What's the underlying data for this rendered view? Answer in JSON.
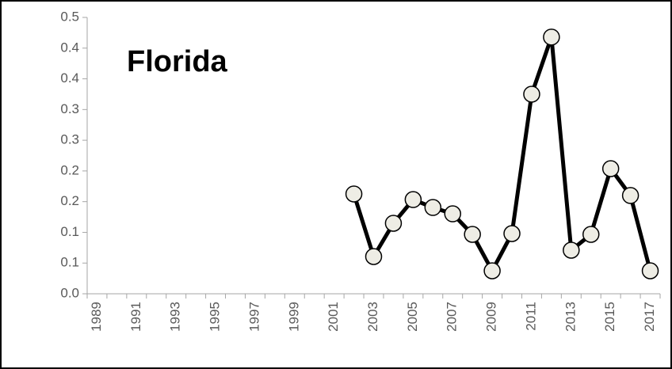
{
  "chart_data": {
    "type": "line",
    "title": "Florida",
    "categories": [
      "1989",
      null,
      "1991",
      null,
      "1993",
      null,
      "1995",
      null,
      "1997",
      null,
      "1999",
      null,
      "2001",
      null,
      "2003",
      null,
      "2005",
      null,
      "2007",
      null,
      "2009",
      null,
      "2011",
      null,
      "2013",
      null,
      "2015",
      null,
      "2017"
    ],
    "series": [
      {
        "name": "Florida",
        "color": "#000000",
        "marker_fill": "#eeede5",
        "values": [
          null,
          null,
          null,
          null,
          null,
          null,
          null,
          null,
          null,
          null,
          null,
          null,
          null,
          0.1625,
          0.0606,
          0.1148,
          0.1534,
          0.1405,
          0.1302,
          0.0967,
          0.0374,
          0.098,
          0.325,
          0.418,
          0.0709,
          0.0967,
          0.2037,
          0.16,
          0.0374
        ]
      }
    ],
    "ylim": [
      0,
      0.45
    ],
    "yticks": [
      {
        "value": 0,
        "label": "0.0"
      },
      {
        "value": 0.05,
        "label": "0.1"
      },
      {
        "value": 0.1,
        "label": "0.1"
      },
      {
        "value": 0.15,
        "label": "0.2"
      },
      {
        "value": 0.2,
        "label": "0.2"
      },
      {
        "value": 0.25,
        "label": "0.3"
      },
      {
        "value": 0.3,
        "label": "0.3"
      },
      {
        "value": 0.35,
        "label": "0.4"
      },
      {
        "value": 0.4,
        "label": "0.4"
      },
      {
        "value": 0.45,
        "label": "0.5"
      }
    ],
    "grid": false
  }
}
